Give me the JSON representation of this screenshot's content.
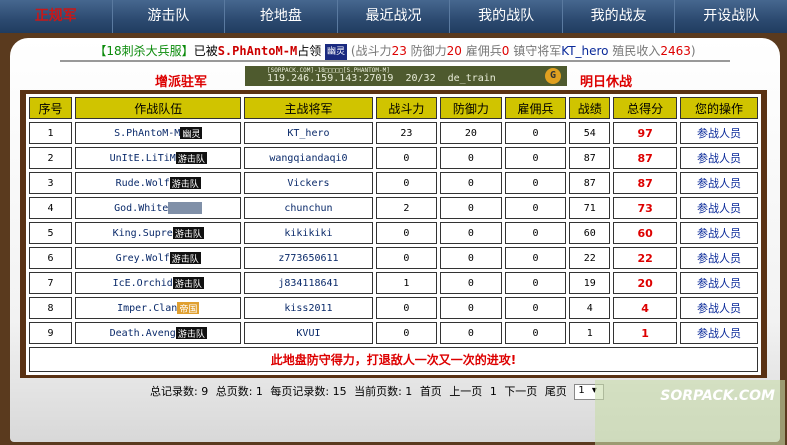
{
  "nav": [
    {
      "label": "正规军",
      "active": true
    },
    {
      "label": "游击队"
    },
    {
      "label": "抢地盘"
    },
    {
      "label": "最近战况"
    },
    {
      "label": "我的战队"
    },
    {
      "label": "我的战友"
    },
    {
      "label": "开设战队"
    }
  ],
  "info": {
    "server": "【18刺杀大兵服】",
    "occupied_by_prefix": "已被",
    "team": "S.PhAntoM-M",
    "occupied_suffix": "占领",
    "badge": "幽灵",
    "attack_label": "(战斗力",
    "attack": "23",
    "defense_label": " 防御力",
    "defense": "20",
    "merc_label": " 雇佣兵",
    "merc": "0",
    "general_label": " 镇守将军",
    "general": "KT_hero",
    "income_label": " 殖民收入",
    "income": "2463",
    "close": ")"
  },
  "actions": {
    "reinforce": "增派驻军",
    "truce": "明日休战"
  },
  "server_banner": {
    "name": "[SORPACK.COM]-18□□□□□[S.PHANTOM-M]",
    "address": "119.246.159.143:27019",
    "players": "20/32",
    "map": "de_train"
  },
  "table": {
    "headers": [
      "序号",
      "作战队伍",
      "主战将军",
      "战斗力",
      "防御力",
      "雇佣兵",
      "战绩",
      "总得分",
      "您的操作"
    ],
    "rows": [
      {
        "no": "1",
        "team": "S.PhAntoM-M",
        "badge": "幽灵",
        "general": "KT_hero",
        "attack": "23",
        "defense": "20",
        "merc": "0",
        "record": "54",
        "score": "97",
        "op": "参战人员"
      },
      {
        "no": "2",
        "team": "UnItE.LiTiM",
        "badge": "游击队",
        "general": "wangqiandaqi0",
        "attack": "0",
        "defense": "0",
        "merc": "0",
        "record": "87",
        "score": "87",
        "op": "参战人员"
      },
      {
        "no": "3",
        "team": "Rude.Wolf",
        "badge": "游击队",
        "general": "Vickers",
        "attack": "0",
        "defense": "0",
        "merc": "0",
        "record": "87",
        "score": "87",
        "op": "参战人员"
      },
      {
        "no": "4",
        "team": "God.White",
        "badge": "",
        "general": "chunchun",
        "attack": "2",
        "defense": "0",
        "merc": "0",
        "record": "71",
        "score": "73",
        "op": "参战人员"
      },
      {
        "no": "5",
        "team": "King.Supre",
        "badge": "游击队",
        "general": "kikikiki",
        "attack": "0",
        "defense": "0",
        "merc": "0",
        "record": "60",
        "score": "60",
        "op": "参战人员"
      },
      {
        "no": "6",
        "team": "Grey.Wolf",
        "badge": "游击队",
        "general": "z773650611",
        "attack": "0",
        "defense": "0",
        "merc": "0",
        "record": "22",
        "score": "22",
        "op": "参战人员"
      },
      {
        "no": "7",
        "team": "IcE.Orchid",
        "badge": "游击队",
        "general": "j834118641",
        "attack": "1",
        "defense": "0",
        "merc": "0",
        "record": "19",
        "score": "20",
        "op": "参战人员"
      },
      {
        "no": "8",
        "team": "Imper.Clan",
        "badge": "帝国",
        "general": "kiss2011",
        "attack": "0",
        "defense": "0",
        "merc": "0",
        "record": "4",
        "score": "4",
        "op": "参战人员"
      },
      {
        "no": "9",
        "team": "Death.Aveng",
        "badge": "游击队",
        "general": "KVUI",
        "attack": "0",
        "defense": "0",
        "merc": "0",
        "record": "1",
        "score": "1",
        "op": "参战人员"
      }
    ],
    "message": "此地盘防守得力，打退敌人一次又一次的进攻!"
  },
  "pager": {
    "total": "总记录数: 9",
    "pages": "总页数: 1",
    "per_page": "每页记录数: 15",
    "current": "当前页数: 1",
    "first": "首页",
    "prev": "上一页",
    "page": "1",
    "next": "下一页",
    "last": "尾页",
    "select": "1"
  },
  "watermark": "SORPACK.COM"
}
